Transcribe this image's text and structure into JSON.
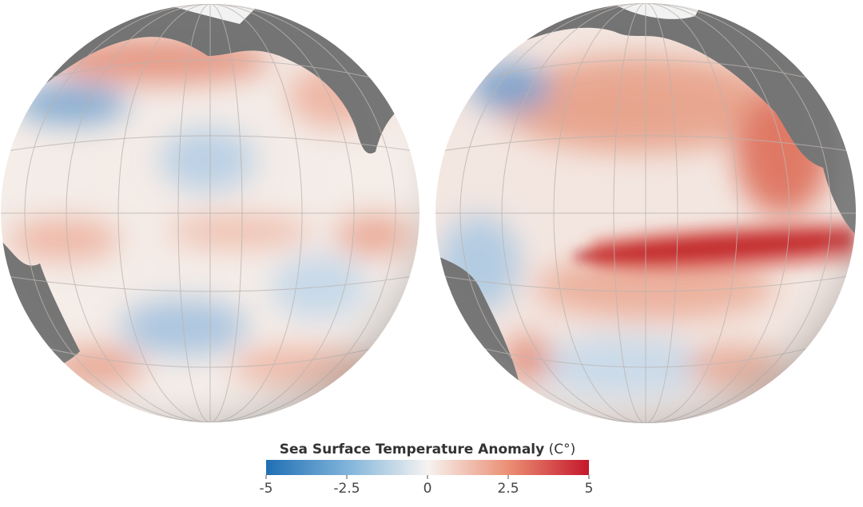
{
  "legend": {
    "title": "Sea Surface Temperature Anomaly",
    "unit": "(C°)",
    "range": [
      -5,
      5
    ],
    "ticks": [
      -5,
      -2.5,
      0,
      2.5,
      5
    ],
    "colors": [
      "#1f6fb4",
      "#7fb3da",
      "#f6f3f1",
      "#eb8f74",
      "#c4182c"
    ]
  }
}
